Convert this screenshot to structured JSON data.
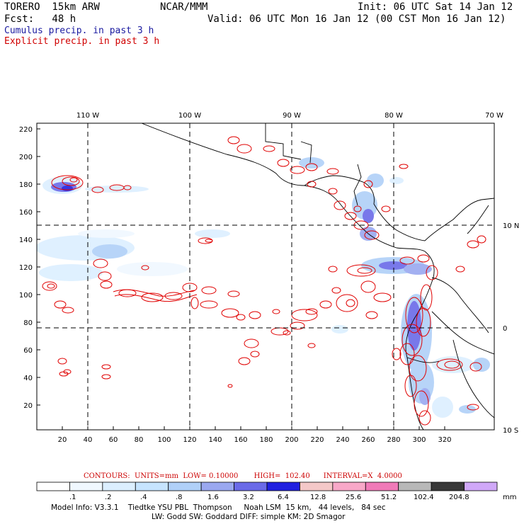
{
  "header": {
    "model": "TORERO  15km ARW",
    "org": "NCAR/MMM",
    "init": "Init: 06 UTC Sat 14 Jan 12",
    "fcst": "Fcst:   48 h",
    "valid": "Valid: 06 UTC Mon 16 Jan 12 (00 CST Mon 16 Jan 12)",
    "field1": "Cumulus precip. in past 3 h",
    "field2": "Explicit precip. in past 3 h",
    "field1_color": "#1a1aa0",
    "field2_color": "#d00000"
  },
  "map": {
    "lon_labels": [
      "110 W",
      "100 W",
      "90 W",
      "80 W",
      "70 W"
    ],
    "lat_labels": [
      "10 N",
      "0",
      "10 S"
    ],
    "y_ticks": [
      "20",
      "40",
      "60",
      "80",
      "100",
      "120",
      "140",
      "160",
      "180",
      "200",
      "220"
    ],
    "x_ticks": [
      "20",
      "40",
      "60",
      "80",
      "100",
      "120",
      "140",
      "160",
      "180",
      "200",
      "220",
      "240",
      "260",
      "280",
      "300",
      "320"
    ]
  },
  "contour_info": "CONTOURS:  UNITS=mm  LOW= 0.10000       HIGH=  102.40      INTERVAL=X  4.0000",
  "legend": {
    "colors": [
      "#ffffff",
      "#f0f8ff",
      "#dcefff",
      "#c6e4ff",
      "#b0d0f8",
      "#9aa8f0",
      "#6a6ae8",
      "#2020e0",
      "#f4c8c8",
      "#f8a8c8",
      "#f07ab8",
      "#b8b8b8",
      "#383838",
      "#d0a8f8"
    ],
    "labels": [
      ".1",
      ".2",
      ".4",
      ".8",
      "1.6",
      "3.2",
      "6.4",
      "12.8",
      "25.6",
      "51.2",
      "102.4",
      "204.8"
    ],
    "unit": "mm"
  },
  "model_info": {
    "line1": "Model Info: V3.3.1    Tiedtke YSU PBL  Thompson     Noah LSM  15 km,   44 levels,   84 sec",
    "line2": "LW: Godd SW: Goddard DIFF: simple KM: 2D Smagor"
  }
}
